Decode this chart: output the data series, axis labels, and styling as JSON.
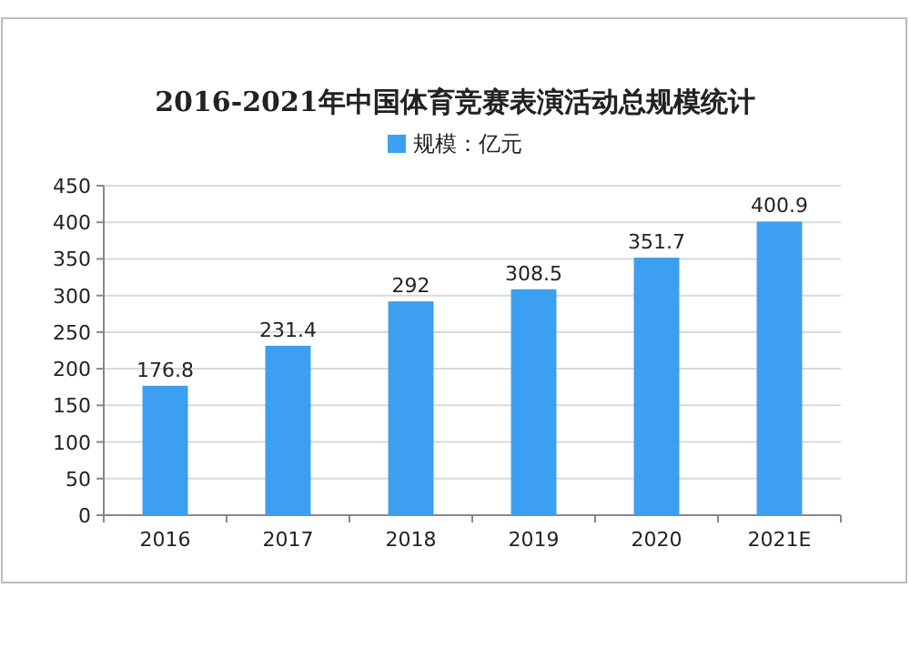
{
  "chart_data": {
    "type": "bar",
    "title": "2016-2021年中国体育竞赛表演活动总规模统计",
    "categories": [
      "2016",
      "2017",
      "2018",
      "2019",
      "2020",
      "2021E"
    ],
    "series": [
      {
        "name": "规模：亿元",
        "color": "#3d9ff0",
        "values": [
          176.8,
          231.4,
          292,
          308.5,
          351.7,
          400.9
        ]
      }
    ],
    "ylim": [
      0,
      450
    ],
    "yticks": [
      0,
      50,
      100,
      150,
      200,
      250,
      300,
      350,
      400,
      450
    ],
    "grid": "y",
    "legend": "top",
    "data_labels": true
  }
}
